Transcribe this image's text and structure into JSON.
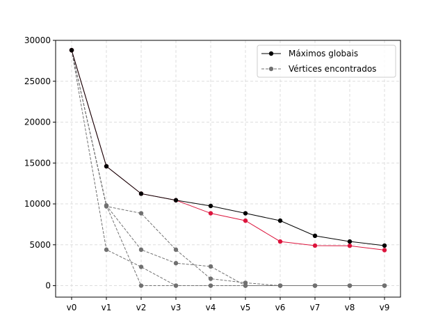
{
  "chart_data": {
    "type": "line",
    "categories": [
      "v0",
      "v1",
      "v2",
      "v3",
      "v4",
      "v5",
      "v6",
      "v7",
      "v8",
      "v9"
    ],
    "ylim": [
      -1400,
      30000
    ],
    "yticks": [
      0,
      5000,
      10000,
      15000,
      20000,
      25000,
      30000
    ],
    "grid": true,
    "legend_position": "top-right",
    "legend": [
      {
        "label": "Máximos globais",
        "color": "#000000",
        "style": "solid"
      },
      {
        "label": "Vértices encontrados",
        "color": "#707070",
        "style": "dashed"
      }
    ],
    "series": [
      {
        "role": "found",
        "color": "#707070",
        "style": "dashed",
        "values": [
          28800,
          9700,
          8850,
          4400,
          850,
          350,
          0,
          0,
          0,
          0
        ]
      },
      {
        "role": "found",
        "color": "#707070",
        "style": "dashed",
        "values": [
          28800,
          4400,
          2300,
          0,
          0,
          0,
          0,
          0,
          0,
          0
        ]
      },
      {
        "role": "found",
        "color": "#707070",
        "style": "dashed",
        "values": [
          28800,
          9800,
          0,
          0,
          0,
          0,
          0,
          0,
          0,
          0
        ]
      },
      {
        "role": "found",
        "color": "#707070",
        "style": "dashed",
        "values": [
          28800,
          9800,
          4400,
          2750,
          2350,
          0,
          0,
          0,
          0,
          0
        ]
      },
      {
        "role": "found",
        "color": "#dc143c",
        "style": "solid",
        "values": [
          28800,
          14600,
          11250,
          10450,
          8850,
          7950,
          5400,
          4900,
          4880,
          4350
        ]
      },
      {
        "role": "global",
        "color": "#000000",
        "style": "solid",
        "values": [
          28800,
          14600,
          11250,
          10450,
          9750,
          8850,
          7950,
          6100,
          5400,
          4900
        ]
      }
    ]
  }
}
